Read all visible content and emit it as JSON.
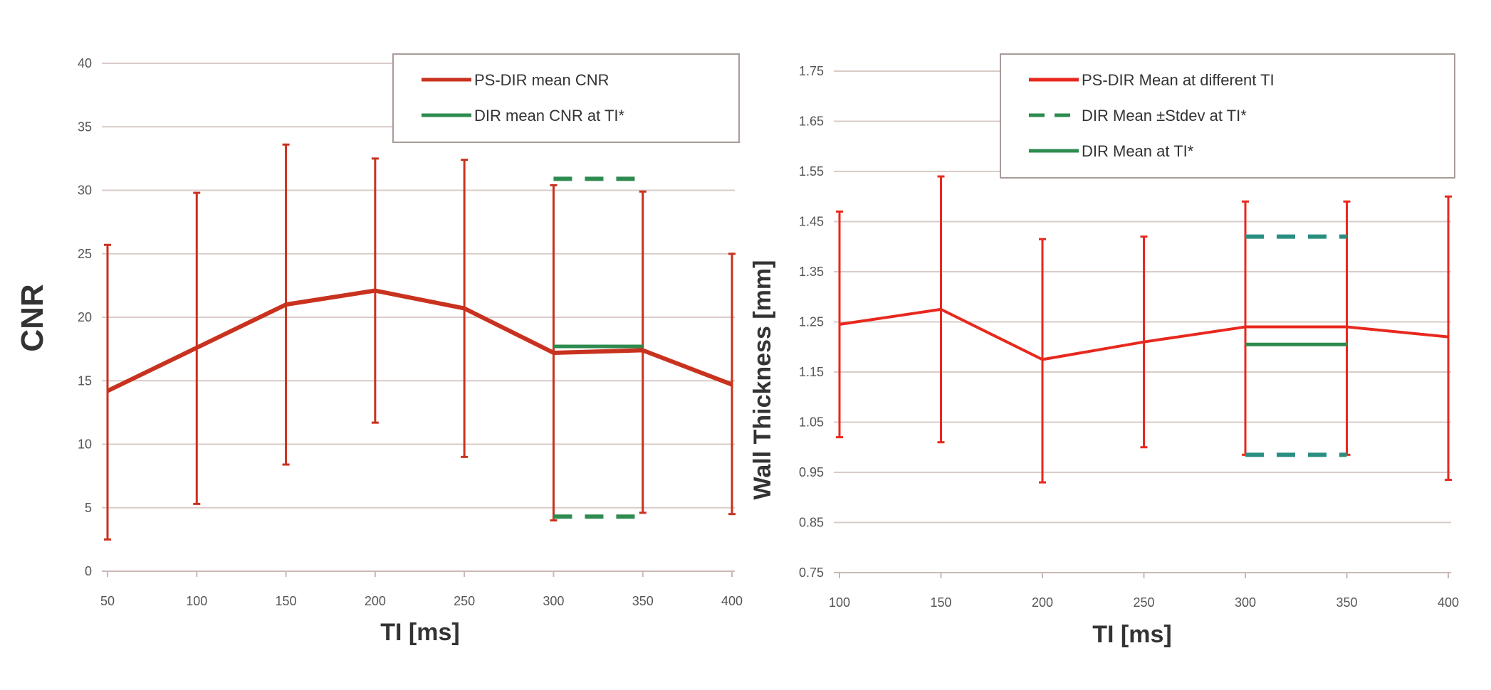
{
  "chart_data": [
    {
      "type": "line",
      "title": "",
      "xlabel": "TI [ms]",
      "ylabel": "CNR",
      "xlim": [
        50,
        400
      ],
      "ylim": [
        0,
        40
      ],
      "xticks": [
        "50",
        "100",
        "150",
        "200",
        "250",
        "300",
        "350",
        "400"
      ],
      "yticks": [
        "0",
        "5",
        "10",
        "15",
        "20",
        "25",
        "30",
        "35",
        "40"
      ],
      "grid": true,
      "legend_position": "top-right",
      "x": [
        50,
        100,
        150,
        200,
        250,
        300,
        350,
        400
      ],
      "series": [
        {
          "name": "PS-DIR mean CNR",
          "color": "#c8321e",
          "values": [
            14.2,
            17.6,
            21.0,
            22.1,
            20.7,
            17.2,
            17.4,
            14.7
          ],
          "err_low": [
            2.5,
            5.3,
            8.4,
            11.7,
            9.0,
            4.0,
            4.6,
            4.5
          ],
          "err_high": [
            25.7,
            29.8,
            33.6,
            32.5,
            32.4,
            30.4,
            29.9,
            25.0
          ]
        },
        {
          "name": "DIR mean CNR at TI*",
          "color": "#2e8b4f",
          "x_range": [
            300,
            350
          ],
          "value": 17.7,
          "stdev_low": 4.3,
          "stdev_high": 30.9
        }
      ]
    },
    {
      "type": "line",
      "title": "",
      "xlabel": "TI [ms]",
      "ylabel": "Wall Thickness [mm]",
      "xlim": [
        100,
        400
      ],
      "ylim": [
        0.75,
        1.75
      ],
      "xticks": [
        "100",
        "150",
        "200",
        "250",
        "300",
        "350",
        "400"
      ],
      "yticks": [
        "0.75",
        "0.85",
        "0.95",
        "1.05",
        "1.15",
        "1.25",
        "1.35",
        "1.45",
        "1.55",
        "1.65",
        "1.75"
      ],
      "grid": true,
      "legend_position": "top-right",
      "x": [
        100,
        150,
        200,
        250,
        300,
        350,
        400
      ],
      "series": [
        {
          "name": "PS-DIR Mean at different  TI",
          "color": "#e8281e",
          "values": [
            1.245,
            1.275,
            1.175,
            1.21,
            1.24,
            1.24,
            1.22
          ],
          "err_low": [
            1.02,
            1.01,
            0.93,
            1.0,
            0.985,
            0.985,
            0.935
          ],
          "err_high": [
            1.47,
            1.54,
            1.415,
            1.42,
            1.49,
            1.49,
            1.5
          ]
        },
        {
          "name": "DIR Mean ±Stdev at TI*",
          "color": "#2a8f80",
          "x_range": [
            300,
            350
          ],
          "stdev_low": 0.985,
          "stdev_high": 1.42
        },
        {
          "name": "DIR Mean at TI*",
          "color": "#2e8b4f",
          "x_range": [
            300,
            350
          ],
          "value": 1.205
        }
      ]
    }
  ]
}
